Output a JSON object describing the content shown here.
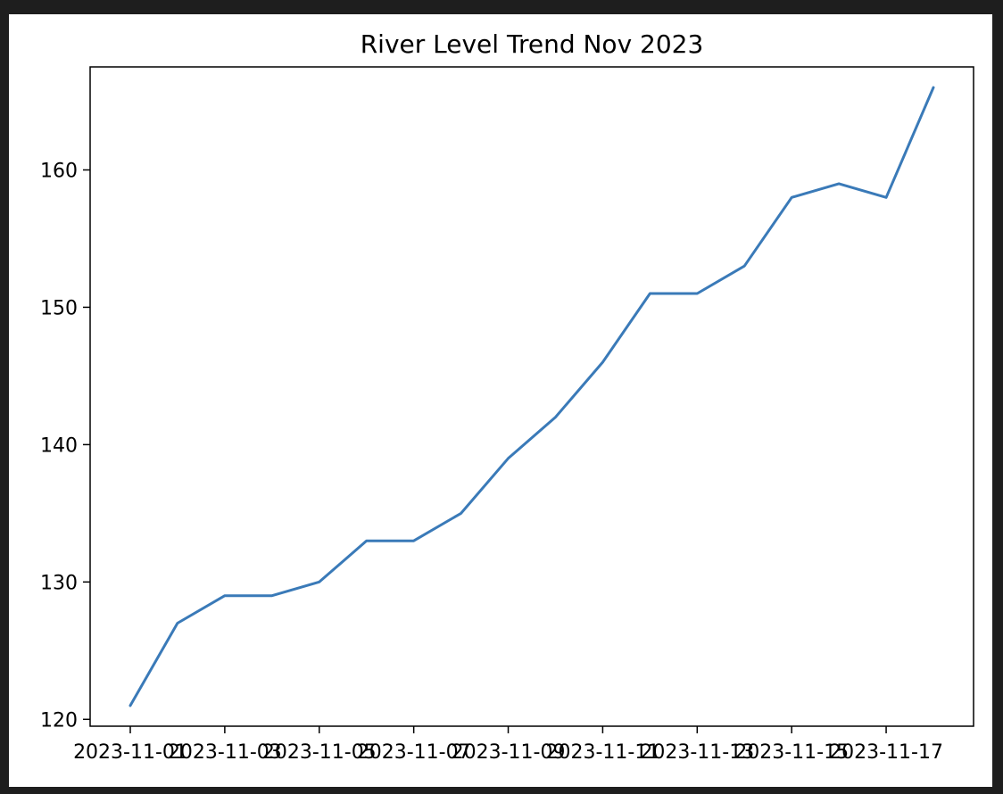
{
  "chart_data": {
    "type": "line",
    "title": "River Level Trend Nov 2023",
    "xlabel": "",
    "ylabel": "",
    "x": [
      "2023-11-01",
      "2023-11-02",
      "2023-11-03",
      "2023-11-04",
      "2023-11-05",
      "2023-11-06",
      "2023-11-07",
      "2023-11-08",
      "2023-11-09",
      "2023-11-10",
      "2023-11-11",
      "2023-11-12",
      "2023-11-13",
      "2023-11-14",
      "2023-11-15",
      "2023-11-16",
      "2023-11-17",
      "2023-11-18"
    ],
    "series": [
      {
        "values": [
          121,
          127,
          129,
          129,
          130,
          133,
          133,
          135,
          139,
          142,
          146,
          151,
          151,
          153,
          158,
          159,
          158,
          166
        ]
      }
    ],
    "xticks": [
      "2023-11-01",
      "2023-11-03",
      "2023-11-05",
      "2023-11-07",
      "2023-11-09",
      "2023-11-11",
      "2023-11-13",
      "2023-11-15",
      "2023-11-17"
    ],
    "yticks": [
      120,
      130,
      140,
      150,
      160
    ],
    "ylim": [
      119.5,
      167.5
    ],
    "grid": false,
    "line_color": "#3a7ab8"
  }
}
